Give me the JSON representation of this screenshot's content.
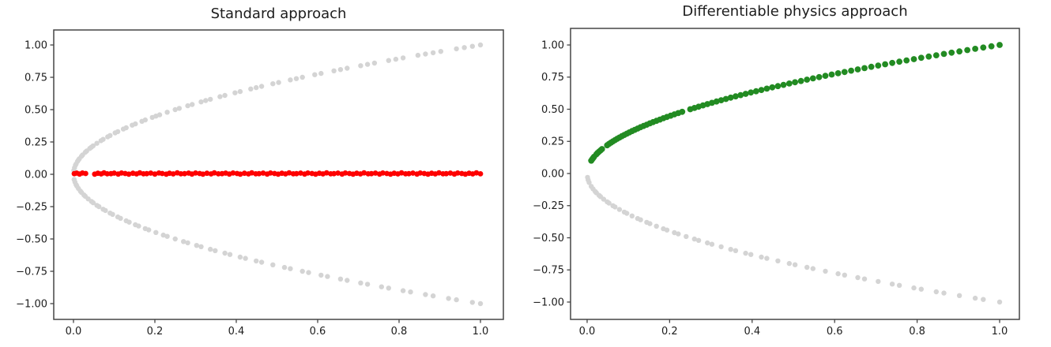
{
  "figure": {
    "background": "#ffffff"
  },
  "chart_data": [
    {
      "type": "scatter",
      "title": "Standard approach",
      "xlabel": "",
      "ylabel": "",
      "grid": false,
      "legend": null,
      "xlim": [
        -0.0485,
        1.0563
      ],
      "ylim": [
        -1.122,
        1.116
      ],
      "xticks": [
        0.0,
        0.2,
        0.4,
        0.6,
        0.8,
        1.0
      ],
      "xtick_labels": [
        "0.0",
        "0.2",
        "0.4",
        "0.6",
        "0.8",
        "1.0"
      ],
      "yticks": [
        1.0,
        0.75,
        0.5,
        0.25,
        0.0,
        -0.25,
        -0.5,
        -0.75,
        -1.0
      ],
      "ytick_labels": [
        "1.00",
        "0.75",
        "0.50",
        "0.25",
        "0.00",
        "−0.25",
        "−0.50",
        "−0.75",
        "−1.00"
      ],
      "series": [
        {
          "name": "training-data-upper-branch",
          "color": "#d4d4d4",
          "marker_px": 3.2,
          "x": [
            0.0009,
            0.0025,
            0.0049,
            0.0064,
            0.01,
            0.0121,
            0.0144,
            0.0196,
            0.0225,
            0.0289,
            0.0324,
            0.04,
            0.0441,
            0.0484,
            0.0576,
            0.0676,
            0.0729,
            0.0841,
            0.09,
            0.1024,
            0.1089,
            0.1225,
            0.1296,
            0.1444,
            0.1521,
            0.1681,
            0.1764,
            0.1936,
            0.2025,
            0.2116,
            0.2304,
            0.25,
            0.2601,
            0.2809,
            0.2916,
            0.3136,
            0.3249,
            0.3364,
            0.36,
            0.3721,
            0.3969,
            0.4096,
            0.4356,
            0.4489,
            0.4624,
            0.49,
            0.5041,
            0.5329,
            0.5476,
            0.5625,
            0.5929,
            0.6084,
            0.64,
            0.6561,
            0.6724,
            0.7056,
            0.7225,
            0.7396,
            0.7744,
            0.7921,
            0.81,
            0.8464,
            0.8649,
            0.8836,
            0.9025,
            0.9409,
            0.9604,
            0.9801,
            1.0
          ],
          "y": [
            0.03,
            0.05,
            0.07,
            0.08,
            0.1,
            0.11,
            0.12,
            0.14,
            0.15,
            0.17,
            0.18,
            0.2,
            0.21,
            0.22,
            0.24,
            0.26,
            0.27,
            0.29,
            0.3,
            0.32,
            0.33,
            0.35,
            0.36,
            0.38,
            0.39,
            0.41,
            0.42,
            0.44,
            0.45,
            0.46,
            0.48,
            0.5,
            0.51,
            0.53,
            0.54,
            0.56,
            0.57,
            0.58,
            0.6,
            0.61,
            0.63,
            0.64,
            0.66,
            0.67,
            0.68,
            0.7,
            0.71,
            0.73,
            0.74,
            0.75,
            0.77,
            0.78,
            0.8,
            0.81,
            0.82,
            0.84,
            0.85,
            0.86,
            0.88,
            0.89,
            0.9,
            0.92,
            0.93,
            0.94,
            0.95,
            0.97,
            0.98,
            0.99,
            1.0
          ]
        },
        {
          "name": "training-data-lower-branch",
          "color": "#d4d4d4",
          "marker_px": 3.2,
          "x": [
            0.0016,
            0.0036,
            0.0064,
            0.0081,
            0.0121,
            0.0169,
            0.0196,
            0.0256,
            0.0289,
            0.0361,
            0.0441,
            0.0484,
            0.0576,
            0.0625,
            0.0729,
            0.0784,
            0.09,
            0.0961,
            0.1089,
            0.1156,
            0.1296,
            0.1369,
            0.1521,
            0.16,
            0.1764,
            0.1849,
            0.2025,
            0.2209,
            0.2304,
            0.25,
            0.2704,
            0.2809,
            0.3025,
            0.3136,
            0.3364,
            0.3481,
            0.3721,
            0.3844,
            0.4096,
            0.4225,
            0.4489,
            0.4624,
            0.49,
            0.5184,
            0.5329,
            0.5625,
            0.5776,
            0.6084,
            0.6241,
            0.6561,
            0.6724,
            0.7056,
            0.7225,
            0.7569,
            0.7744,
            0.81,
            0.8281,
            0.8649,
            0.8836,
            0.9216,
            0.9409,
            0.9801,
            1.0
          ],
          "y": [
            -0.04,
            -0.06,
            -0.08,
            -0.09,
            -0.11,
            -0.13,
            -0.14,
            -0.16,
            -0.17,
            -0.19,
            -0.21,
            -0.22,
            -0.24,
            -0.25,
            -0.27,
            -0.28,
            -0.3,
            -0.31,
            -0.33,
            -0.34,
            -0.36,
            -0.37,
            -0.39,
            -0.4,
            -0.42,
            -0.43,
            -0.45,
            -0.47,
            -0.48,
            -0.5,
            -0.52,
            -0.53,
            -0.55,
            -0.56,
            -0.58,
            -0.59,
            -0.61,
            -0.62,
            -0.64,
            -0.65,
            -0.67,
            -0.68,
            -0.7,
            -0.72,
            -0.73,
            -0.75,
            -0.76,
            -0.78,
            -0.79,
            -0.81,
            -0.82,
            -0.84,
            -0.85,
            -0.87,
            -0.88,
            -0.9,
            -0.91,
            -0.93,
            -0.94,
            -0.96,
            -0.97,
            -0.99,
            -1.0
          ]
        },
        {
          "name": "standard-nn-prediction",
          "color": "#fe0000",
          "marker_px": 3.4,
          "x": [
            0.002,
            0.008,
            0.015,
            0.022,
            0.03,
            0.052,
            0.06,
            0.068,
            0.075,
            0.083,
            0.092,
            0.1,
            0.11,
            0.118,
            0.127,
            0.136,
            0.146,
            0.155,
            0.163,
            0.172,
            0.18,
            0.19,
            0.2,
            0.21,
            0.218,
            0.228,
            0.236,
            0.245,
            0.255,
            0.264,
            0.273,
            0.283,
            0.291,
            0.3,
            0.31,
            0.318,
            0.328,
            0.338,
            0.346,
            0.356,
            0.365,
            0.374,
            0.383,
            0.392,
            0.402,
            0.41,
            0.42,
            0.43,
            0.438,
            0.448,
            0.456,
            0.466,
            0.476,
            0.484,
            0.494,
            0.503,
            0.512,
            0.521,
            0.53,
            0.54,
            0.548,
            0.558,
            0.568,
            0.576,
            0.586,
            0.595,
            0.604,
            0.613,
            0.622,
            0.632,
            0.64,
            0.65,
            0.66,
            0.668,
            0.678,
            0.687,
            0.696,
            0.705,
            0.714,
            0.724,
            0.732,
            0.742,
            0.752,
            0.76,
            0.77,
            0.779,
            0.788,
            0.797,
            0.806,
            0.816,
            0.824,
            0.834,
            0.844,
            0.852,
            0.862,
            0.871,
            0.88,
            0.889,
            0.898,
            0.908,
            0.916,
            0.926,
            0.936,
            0.944,
            0.954,
            0.963,
            0.972,
            0.981,
            0.99,
            1.0
          ],
          "y": [
            0.005,
            0.009,
            0.002,
            0.01,
            0.006,
            0.001,
            0.008,
            0.003,
            0.011,
            0.004,
            0.005,
            0.009,
            0.002,
            0.01,
            0.006,
            0.001,
            0.008,
            0.003,
            0.011,
            0.004,
            0.005,
            0.009,
            0.002,
            0.01,
            0.006,
            0.001,
            0.008,
            0.003,
            0.011,
            0.004,
            0.005,
            0.009,
            0.002,
            0.01,
            0.006,
            0.001,
            0.008,
            0.003,
            0.011,
            0.004,
            0.005,
            0.009,
            0.002,
            0.01,
            0.006,
            0.001,
            0.008,
            0.003,
            0.011,
            0.004,
            0.005,
            0.009,
            0.002,
            0.01,
            0.006,
            0.001,
            0.008,
            0.003,
            0.011,
            0.004,
            0.005,
            0.009,
            0.002,
            0.01,
            0.006,
            0.001,
            0.008,
            0.003,
            0.011,
            0.004,
            0.005,
            0.009,
            0.002,
            0.01,
            0.006,
            0.001,
            0.008,
            0.003,
            0.011,
            0.004,
            0.005,
            0.009,
            0.002,
            0.01,
            0.006,
            0.001,
            0.008,
            0.003,
            0.011,
            0.004,
            0.005,
            0.009,
            0.002,
            0.01,
            0.006,
            0.001,
            0.008,
            0.003,
            0.011,
            0.004,
            0.005,
            0.009,
            0.002,
            0.01,
            0.006,
            0.001,
            0.008,
            0.003,
            0.011,
            0.004
          ]
        }
      ]
    },
    {
      "type": "scatter",
      "title": "Differentiable physics approach",
      "xlabel": "",
      "ylabel": "",
      "grid": false,
      "legend": null,
      "xlim": [
        -0.0402,
        1.0479
      ],
      "ylim": [
        -1.135,
        1.129
      ],
      "xticks": [
        0.0,
        0.2,
        0.4,
        0.6,
        0.8,
        1.0
      ],
      "xtick_labels": [
        "0.0",
        "0.2",
        "0.4",
        "0.6",
        "0.8",
        "1.0"
      ],
      "yticks": [
        1.0,
        0.75,
        0.5,
        0.25,
        0.0,
        -0.25,
        -0.5,
        -0.75,
        -1.0
      ],
      "ytick_labels": [
        "1.00",
        "0.75",
        "0.50",
        "0.25",
        "0.00",
        "−0.25",
        "−0.50",
        "−0.75",
        "−1.00"
      ],
      "series": [
        {
          "name": "training-data-lower-branch",
          "color": "#d4d4d4",
          "marker_px": 3.2,
          "x": [
            0.0009,
            0.0025,
            0.0049,
            0.01,
            0.0144,
            0.0196,
            0.0225,
            0.0289,
            0.0324,
            0.04,
            0.0484,
            0.0529,
            0.0625,
            0.0676,
            0.0784,
            0.09,
            0.0961,
            0.1089,
            0.1225,
            0.1296,
            0.1444,
            0.1521,
            0.1681,
            0.1849,
            0.1936,
            0.2116,
            0.2209,
            0.2401,
            0.2601,
            0.2704,
            0.2916,
            0.3025,
            0.3249,
            0.3481,
            0.36,
            0.3844,
            0.3969,
            0.4225,
            0.4356,
            0.4624,
            0.49,
            0.5041,
            0.5329,
            0.5476,
            0.5776,
            0.6084,
            0.6241,
            0.6561,
            0.6724,
            0.7056,
            0.7396,
            0.7569,
            0.7921,
            0.81,
            0.8464,
            0.8649,
            0.9025,
            0.9409,
            0.9604,
            1.0
          ],
          "y": [
            -0.03,
            -0.05,
            -0.07,
            -0.1,
            -0.12,
            -0.14,
            -0.15,
            -0.17,
            -0.18,
            -0.2,
            -0.22,
            -0.23,
            -0.25,
            -0.26,
            -0.28,
            -0.3,
            -0.31,
            -0.33,
            -0.35,
            -0.36,
            -0.38,
            -0.39,
            -0.41,
            -0.43,
            -0.44,
            -0.46,
            -0.47,
            -0.49,
            -0.51,
            -0.52,
            -0.54,
            -0.55,
            -0.57,
            -0.59,
            -0.6,
            -0.62,
            -0.63,
            -0.65,
            -0.66,
            -0.68,
            -0.7,
            -0.71,
            -0.73,
            -0.74,
            -0.76,
            -0.78,
            -0.79,
            -0.81,
            -0.82,
            -0.84,
            -0.86,
            -0.87,
            -0.89,
            -0.9,
            -0.92,
            -0.93,
            -0.95,
            -0.97,
            -0.98,
            -1.0
          ]
        },
        {
          "name": "differentiable-physics-prediction",
          "color": "#228b22",
          "marker_px": 3.9,
          "x": [
            0.01,
            0.0121,
            0.0144,
            0.0169,
            0.0225,
            0.0256,
            0.0289,
            0.0324,
            0.0361,
            0.0484,
            0.0529,
            0.0576,
            0.0625,
            0.0676,
            0.0729,
            0.0784,
            0.0841,
            0.09,
            0.0961,
            0.1024,
            0.1089,
            0.1156,
            0.1225,
            0.1296,
            0.1369,
            0.1444,
            0.1521,
            0.16,
            0.1681,
            0.1764,
            0.1849,
            0.1936,
            0.2025,
            0.2116,
            0.2209,
            0.2304,
            0.25,
            0.2601,
            0.2704,
            0.2809,
            0.2916,
            0.3025,
            0.3136,
            0.3249,
            0.3364,
            0.3481,
            0.36,
            0.3721,
            0.3844,
            0.3969,
            0.4096,
            0.4225,
            0.4356,
            0.4489,
            0.4624,
            0.4761,
            0.49,
            0.5041,
            0.5184,
            0.5329,
            0.5476,
            0.5625,
            0.5776,
            0.5929,
            0.6084,
            0.6241,
            0.64,
            0.6561,
            0.6724,
            0.6889,
            0.7056,
            0.7225,
            0.7396,
            0.7569,
            0.7744,
            0.7921,
            0.81,
            0.8281,
            0.8464,
            0.8649,
            0.8836,
            0.9025,
            0.9216,
            0.9409,
            0.9604,
            0.9801,
            1.0
          ],
          "y": [
            0.1,
            0.11,
            0.12,
            0.13,
            0.15,
            0.16,
            0.17,
            0.18,
            0.19,
            0.22,
            0.23,
            0.24,
            0.25,
            0.26,
            0.27,
            0.28,
            0.29,
            0.3,
            0.31,
            0.32,
            0.33,
            0.34,
            0.35,
            0.36,
            0.37,
            0.38,
            0.39,
            0.4,
            0.41,
            0.42,
            0.43,
            0.44,
            0.45,
            0.46,
            0.47,
            0.48,
            0.5,
            0.51,
            0.52,
            0.53,
            0.54,
            0.55,
            0.56,
            0.57,
            0.58,
            0.59,
            0.6,
            0.61,
            0.62,
            0.63,
            0.64,
            0.65,
            0.66,
            0.67,
            0.68,
            0.69,
            0.7,
            0.71,
            0.72,
            0.73,
            0.74,
            0.75,
            0.76,
            0.77,
            0.78,
            0.79,
            0.8,
            0.81,
            0.82,
            0.83,
            0.84,
            0.85,
            0.86,
            0.87,
            0.88,
            0.89,
            0.9,
            0.91,
            0.92,
            0.93,
            0.94,
            0.95,
            0.96,
            0.97,
            0.98,
            0.99,
            1.0
          ]
        }
      ]
    }
  ]
}
